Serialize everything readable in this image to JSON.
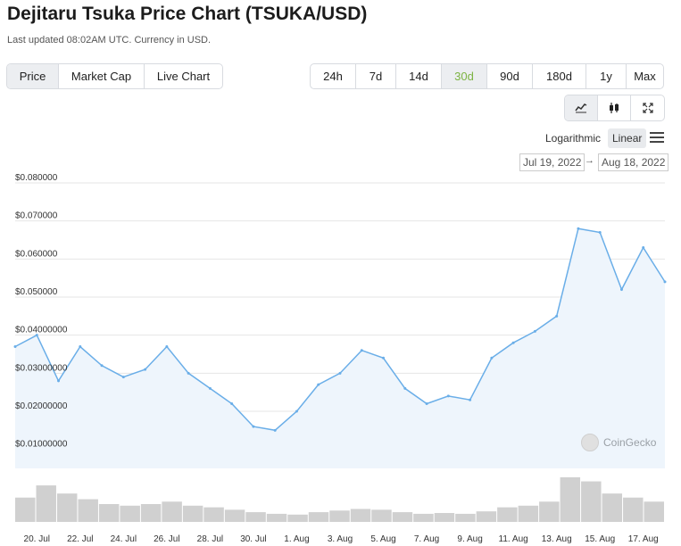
{
  "header": {
    "title": "Dejitaru Tsuka Price Chart (TSUKA/USD)",
    "updated": "Last updated 08:02AM UTC. Currency in USD."
  },
  "chart_type_tabs": [
    "Price",
    "Market Cap",
    "Live Chart"
  ],
  "range_tabs": [
    "24h",
    "7d",
    "14d",
    "30d",
    "90d",
    "180d",
    "1y",
    "Max"
  ],
  "active_range": "30d",
  "view_buttons": [
    "line-chart-icon",
    "candlestick-icon",
    "fullscreen-icon"
  ],
  "scale": {
    "logarithmic": "Logarithmic",
    "linear": "Linear"
  },
  "date_range": {
    "from": "Jul 19, 2022",
    "arrow": "→",
    "to": "Aug 18, 2022"
  },
  "watermark": "CoinGecko",
  "colors": {
    "line": "#6aaee8",
    "area": "#eef5fc",
    "volume": "#d0d0d0",
    "active_range": "#7cb342"
  },
  "chart_data": {
    "type": "area",
    "series": [
      {
        "name": "Price",
        "x": [
          "19. Jul",
          "20. Jul",
          "21. Jul",
          "22. Jul",
          "23. Jul",
          "24. Jul",
          "25. Jul",
          "26. Jul",
          "27. Jul",
          "28. Jul",
          "29. Jul",
          "30. Jul",
          "31. Jul",
          "1. Aug",
          "2. Aug",
          "3. Aug",
          "4. Aug",
          "5. Aug",
          "6. Aug",
          "7. Aug",
          "8. Aug",
          "9. Aug",
          "10. Aug",
          "11. Aug",
          "12. Aug",
          "13. Aug",
          "14. Aug",
          "15. Aug",
          "16. Aug",
          "17. Aug",
          "18. Aug"
        ],
        "values": [
          0.037,
          0.04,
          0.028,
          0.037,
          0.032,
          0.029,
          0.031,
          0.037,
          0.03,
          0.026,
          0.022,
          0.016,
          0.015,
          0.02,
          0.027,
          0.03,
          0.036,
          0.034,
          0.026,
          0.022,
          0.024,
          0.023,
          0.034,
          0.038,
          0.041,
          0.045,
          0.068,
          0.067,
          0.052,
          0.063,
          0.054
        ]
      }
    ],
    "volume": [
      0.3,
      0.45,
      0.35,
      0.28,
      0.22,
      0.2,
      0.22,
      0.25,
      0.2,
      0.18,
      0.15,
      0.12,
      0.1,
      0.09,
      0.12,
      0.14,
      0.16,
      0.15,
      0.12,
      0.1,
      0.11,
      0.1,
      0.13,
      0.18,
      0.2,
      0.25,
      0.55,
      0.5,
      0.35,
      0.3,
      0.25
    ],
    "y_ticks": [
      "$0.01000000",
      "$0.02000000",
      "$0.03000000",
      "$0.04000000",
      "$0.050000",
      "$0.060000",
      "$0.070000",
      "$0.080000"
    ],
    "y_tick_values": [
      0.01,
      0.02,
      0.03,
      0.04,
      0.05,
      0.06,
      0.07,
      0.08
    ],
    "x_ticks": [
      "20. Jul",
      "22. Jul",
      "24. Jul",
      "26. Jul",
      "28. Jul",
      "30. Jul",
      "1. Aug",
      "3. Aug",
      "5. Aug",
      "7. Aug",
      "9. Aug",
      "11. Aug",
      "13. Aug",
      "15. Aug",
      "17. Aug"
    ],
    "ylim": [
      0.005,
      0.08
    ],
    "grid": true,
    "legend": "none"
  }
}
